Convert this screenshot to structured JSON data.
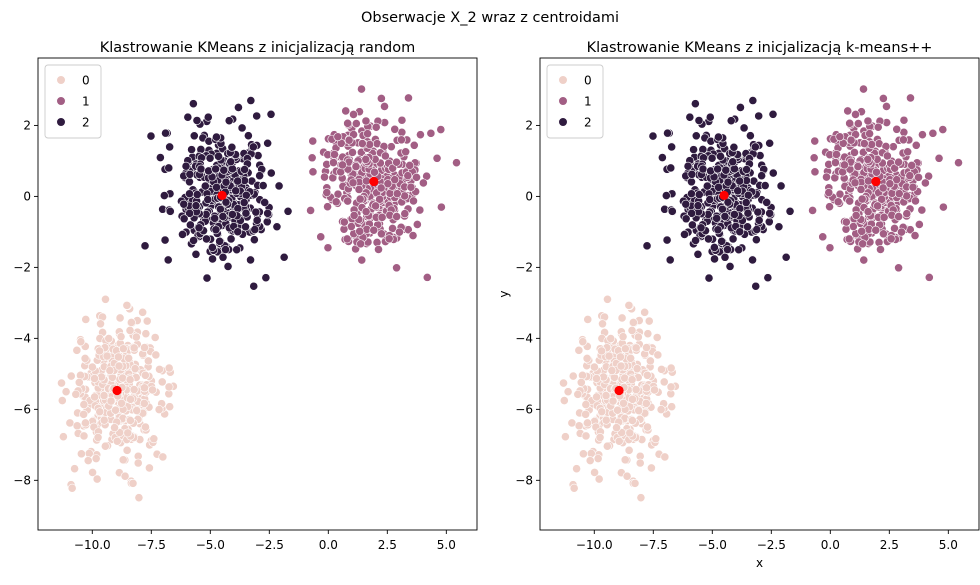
{
  "figure": {
    "suptitle": "Obserwacje X_2 wraz z centroidami"
  },
  "colors": {
    "cluster_0": "#efd0c8",
    "cluster_1": "#a25e84",
    "cluster_2": "#2f1b3f",
    "centroid": "#ff0000"
  },
  "chart_data": [
    {
      "type": "scatter",
      "title": "Klastrowanie KMeans z inicjalizacją random",
      "xlabel": "",
      "ylabel": "",
      "xlim": [
        -12.3,
        6.3
      ],
      "ylim": [
        -9.4,
        3.9
      ],
      "xticks": [
        -10.0,
        -7.5,
        -5.0,
        -2.5,
        0.0,
        2.5,
        5.0
      ],
      "xtick_labels": [
        "−10.0",
        "−7.5",
        "−5.0",
        "−2.5",
        "0.0",
        "2.5",
        "5.0"
      ],
      "yticks": [
        -8,
        -6,
        -4,
        -2,
        0,
        2
      ],
      "ytick_labels": [
        "−8",
        "−6",
        "−4",
        "−2",
        "0",
        "2"
      ],
      "legend": {
        "placement": "top-left",
        "entries": [
          "0",
          "1",
          "2"
        ]
      },
      "grid": false,
      "clusters": [
        {
          "label": "0",
          "center": [
            -8.9,
            -5.5
          ],
          "spread": [
            1.0,
            0.95
          ],
          "count": 400,
          "xrange": [
            -11.5,
            -6.2
          ],
          "yrange": [
            -8.8,
            -2.8
          ]
        },
        {
          "label": "1",
          "center": [
            1.9,
            0.4
          ],
          "spread": [
            1.05,
            0.95
          ],
          "count": 400,
          "xrange": [
            -1.0,
            5.7
          ],
          "yrange": [
            -2.6,
            3.3
          ]
        },
        {
          "label": "2",
          "center": [
            -4.5,
            0.05
          ],
          "spread": [
            1.05,
            0.95
          ],
          "count": 400,
          "xrange": [
            -7.9,
            -1.6
          ],
          "yrange": [
            -2.6,
            2.95
          ]
        }
      ],
      "centroids": [
        {
          "label": "0",
          "x": -8.95,
          "y": -5.47
        },
        {
          "label": "1",
          "x": 1.93,
          "y": 0.42
        },
        {
          "label": "2",
          "x": -4.5,
          "y": 0.03
        }
      ]
    },
    {
      "type": "scatter",
      "title": "Klastrowanie KMeans z inicjalizacją k-means++",
      "xlabel": "x",
      "ylabel": "y",
      "xlim": [
        -12.3,
        6.3
      ],
      "ylim": [
        -9.4,
        3.9
      ],
      "xticks": [
        -10.0,
        -7.5,
        -5.0,
        -2.5,
        0.0,
        2.5,
        5.0
      ],
      "xtick_labels": [
        "−10.0",
        "−7.5",
        "−5.0",
        "−2.5",
        "0.0",
        "2.5",
        "5.0"
      ],
      "yticks": [
        -8,
        -6,
        -4,
        -2,
        0,
        2
      ],
      "ytick_labels": [
        "−8",
        "−6",
        "−4",
        "−2",
        "0",
        "2"
      ],
      "legend": {
        "placement": "top-left",
        "entries": [
          "0",
          "1",
          "2"
        ]
      },
      "grid": false,
      "clusters": [
        {
          "label": "0",
          "center": [
            -8.9,
            -5.5
          ],
          "spread": [
            1.0,
            0.95
          ],
          "count": 400,
          "xrange": [
            -11.5,
            -6.2
          ],
          "yrange": [
            -8.8,
            -2.8
          ]
        },
        {
          "label": "1",
          "center": [
            1.9,
            0.4
          ],
          "spread": [
            1.05,
            0.95
          ],
          "count": 400,
          "xrange": [
            -1.0,
            5.7
          ],
          "yrange": [
            -2.6,
            3.3
          ]
        },
        {
          "label": "2",
          "center": [
            -4.5,
            0.05
          ],
          "spread": [
            1.05,
            0.95
          ],
          "count": 400,
          "xrange": [
            -7.9,
            -1.6
          ],
          "yrange": [
            -2.6,
            2.95
          ]
        }
      ],
      "centroids": [
        {
          "label": "0",
          "x": -8.95,
          "y": -5.47
        },
        {
          "label": "1",
          "x": 1.93,
          "y": 0.42
        },
        {
          "label": "2",
          "x": -4.5,
          "y": 0.03
        }
      ]
    }
  ]
}
